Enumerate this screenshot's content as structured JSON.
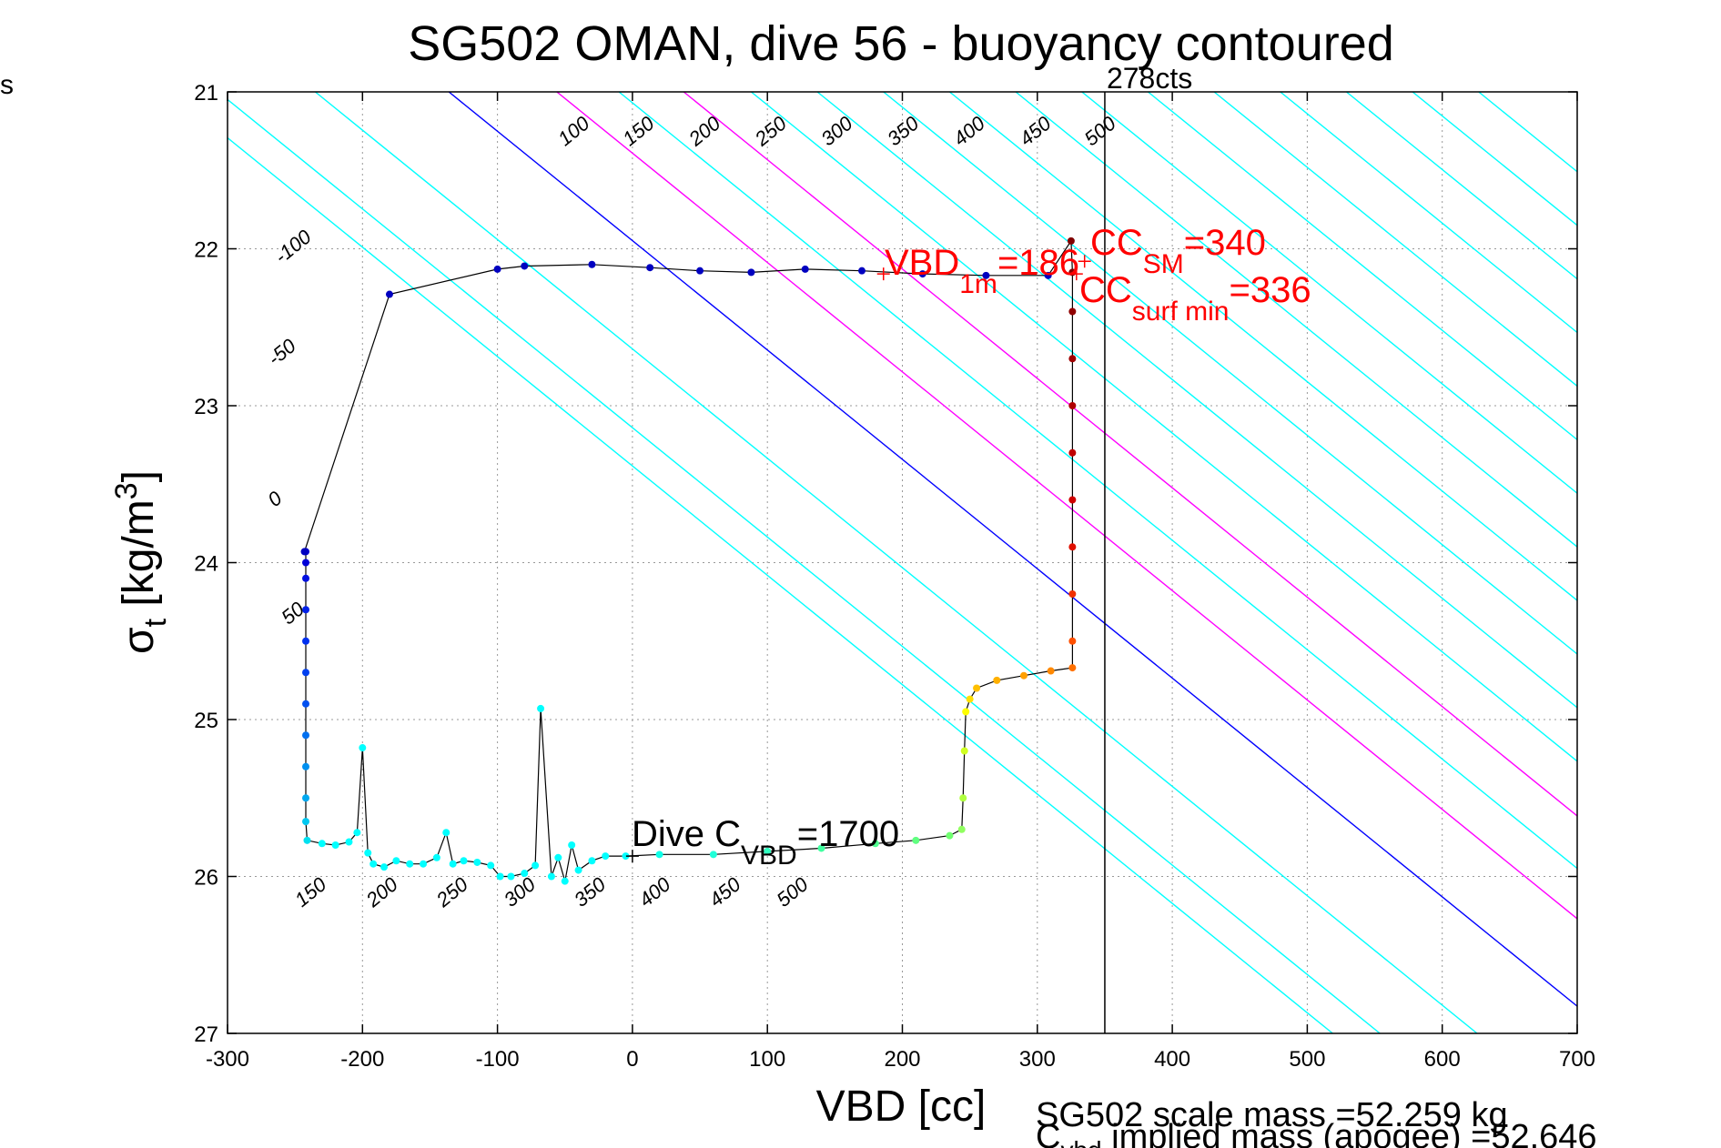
{
  "chart_data": {
    "type": "scatter",
    "title": "SG502 OMAN, dive 56 - buoyancy contoured",
    "xlabel": "VBD [cc]",
    "ylabel": "σt [kg/m3]",
    "xlim": [
      -300,
      700
    ],
    "ylim": [
      21,
      27
    ],
    "y_reversed": true,
    "grid": true,
    "xticks": [
      -300,
      -200,
      -100,
      0,
      100,
      200,
      300,
      400,
      500,
      600,
      700
    ],
    "xtick_labels": [
      "-300",
      "-200",
      "-100",
      "0",
      "100",
      "200",
      "300",
      "400",
      "500",
      "600",
      "700"
    ],
    "yticks": [
      21,
      22,
      23,
      24,
      25,
      26,
      27
    ],
    "ytick_labels": [
      "21",
      "22",
      "23",
      "24",
      "25",
      "26",
      "27"
    ],
    "left_edge_label": "s",
    "contour_slope_sigma_per_cc": 0.00697,
    "contours": [
      {
        "value": -100,
        "label": "-100",
        "color": "#00ffff",
        "x_at_sigma21": -342,
        "label_at": [
          -260,
          22.1
        ]
      },
      {
        "value": -50,
        "label": "-50",
        "color": "#00ffff",
        "x_at_sigma21": -307,
        "label_at": [
          -265,
          22.75
        ]
      },
      {
        "value": 0,
        "label": "0",
        "color": "#0000ff",
        "x_at_sigma21": -136,
        "label_at": [
          -265,
          23.65
        ]
      },
      {
        "value": 50,
        "label": "50",
        "color": "#00ffff",
        "x_at_sigma21": -235,
        "label_at": [
          -255,
          24.4
        ]
      },
      {
        "value": 100,
        "label": "100",
        "color": "#ff00ff",
        "x_at_sigma21": -56,
        "label_at": [
          -50,
          21.35
        ]
      },
      {
        "value": 150,
        "label": "150",
        "color": "#00ffff",
        "x_at_sigma21": -10,
        "label_at": [
          -2,
          21.35
        ]
      },
      {
        "value": 200,
        "label": "200",
        "color": "#ff00ff",
        "x_at_sigma21": 38,
        "label_at": [
          47,
          21.35
        ]
      },
      {
        "value": 250,
        "label": "250",
        "color": "#00ffff",
        "x_at_sigma21": 88,
        "label_at": [
          96,
          21.35
        ]
      },
      {
        "value": 300,
        "label": "300",
        "color": "#00ffff",
        "x_at_sigma21": 137,
        "label_at": [
          145,
          21.35
        ]
      },
      {
        "value": 350,
        "label": "350",
        "color": "#00ffff",
        "x_at_sigma21": 186,
        "label_at": [
          194,
          21.35
        ]
      },
      {
        "value": 400,
        "label": "400",
        "color": "#00ffff",
        "x_at_sigma21": 235,
        "label_at": [
          243,
          21.35
        ]
      },
      {
        "value": 450,
        "label": "450",
        "color": "#00ffff",
        "x_at_sigma21": 284,
        "label_at": [
          292,
          21.35
        ]
      },
      {
        "value": 500,
        "label": "500",
        "color": "#00ffff",
        "x_at_sigma21": 333,
        "label_at": [
          340,
          21.35
        ]
      },
      {
        "value": 550,
        "label": "",
        "color": "#00ffff",
        "x_at_sigma21": 382,
        "label_at": null
      },
      {
        "value": 600,
        "label": "",
        "color": "#00ffff",
        "x_at_sigma21": 431,
        "label_at": null
      },
      {
        "value": 650,
        "label": "",
        "color": "#00ffff",
        "x_at_sigma21": 480,
        "label_at": null
      },
      {
        "value": 700,
        "label": "",
        "color": "#00ffff",
        "x_at_sigma21": 529,
        "label_at": null
      },
      {
        "value": 750,
        "label": "",
        "color": "#00ffff",
        "x_at_sigma21": 578,
        "label_at": null
      },
      {
        "value": 800,
        "label": "",
        "color": "#00ffff",
        "x_at_sigma21": 627,
        "label_at": null
      }
    ],
    "bottom_contour_labels": [
      {
        "label": "150",
        "at": [
          -245,
          26.2
        ]
      },
      {
        "label": "200",
        "at": [
          -192,
          26.2
        ]
      },
      {
        "label": "250",
        "at": [
          -140,
          26.2
        ]
      },
      {
        "label": "300",
        "at": [
          -90,
          26.2
        ]
      },
      {
        "label": "350",
        "at": [
          -38,
          26.2
        ]
      },
      {
        "label": "400",
        "at": [
          10,
          26.2
        ]
      },
      {
        "label": "450",
        "at": [
          62,
          26.2
        ]
      },
      {
        "label": "500",
        "at": [
          112,
          26.2
        ]
      }
    ],
    "series": [
      {
        "name": "dive",
        "line_color": "#000000",
        "points": [
          [
            -242,
            23.93,
            "#0000d0"
          ],
          [
            -242,
            24.0,
            "#0000d8"
          ],
          [
            -242,
            24.1,
            "#0010e0"
          ],
          [
            -242,
            24.3,
            "#0020e8"
          ],
          [
            -242,
            24.5,
            "#0030f0"
          ],
          [
            -242,
            24.7,
            "#0040f0"
          ],
          [
            -242,
            24.9,
            "#0050f0"
          ],
          [
            -242,
            25.1,
            "#0070f0"
          ],
          [
            -242,
            25.3,
            "#0090f0"
          ],
          [
            -242,
            25.5,
            "#00a8f0"
          ],
          [
            -242,
            25.65,
            "#00c8f0"
          ],
          [
            -241,
            25.77,
            "#00e0f0"
          ],
          [
            -230,
            25.79,
            "#00ffff"
          ],
          [
            -220,
            25.8,
            "#00ffff"
          ],
          [
            -210,
            25.78,
            "#00ffff"
          ],
          [
            -204,
            25.72,
            "#00ffff"
          ],
          [
            -200,
            25.18,
            "#00ffff"
          ],
          [
            -196,
            25.85,
            "#00ffff"
          ],
          [
            -192,
            25.92,
            "#00ffff"
          ],
          [
            -184,
            25.94,
            "#00ffff"
          ],
          [
            -175,
            25.9,
            "#00ffff"
          ],
          [
            -165,
            25.92,
            "#00ffff"
          ],
          [
            -155,
            25.92,
            "#00ffff"
          ],
          [
            -145,
            25.88,
            "#00ffff"
          ],
          [
            -138,
            25.72,
            "#00ffff"
          ],
          [
            -133,
            25.92,
            "#00ffff"
          ],
          [
            -125,
            25.9,
            "#00ffff"
          ],
          [
            -115,
            25.91,
            "#00ffff"
          ],
          [
            -105,
            25.93,
            "#00ffff"
          ],
          [
            -98,
            26.0,
            "#00ffff"
          ],
          [
            -90,
            26.0,
            "#00ffff"
          ],
          [
            -80,
            25.98,
            "#00ffff"
          ],
          [
            -72,
            25.93,
            "#00ffff"
          ],
          [
            -68,
            24.93,
            "#00ffff"
          ],
          [
            -60,
            26.0,
            "#00ffff"
          ],
          [
            -55,
            25.88,
            "#00ffff"
          ],
          [
            -50,
            26.03,
            "#00ffff"
          ],
          [
            -45,
            25.8,
            "#00ffff"
          ],
          [
            -40,
            25.96,
            "#00ffff"
          ],
          [
            -30,
            25.9,
            "#00ffff"
          ],
          [
            -20,
            25.87,
            "#00ffff"
          ],
          [
            -5,
            25.87,
            "#00ffff"
          ],
          [
            20,
            25.86,
            "#10ffe8"
          ],
          [
            60,
            25.86,
            "#20ffd8"
          ],
          [
            100,
            25.84,
            "#30ffc0"
          ],
          [
            140,
            25.82,
            "#40ffa0"
          ],
          [
            180,
            25.79,
            "#50ff90"
          ],
          [
            210,
            25.77,
            "#60ff80"
          ],
          [
            235,
            25.74,
            "#70ff70"
          ],
          [
            244,
            25.7,
            "#90ff60"
          ],
          [
            245,
            25.5,
            "#b0ff40"
          ],
          [
            246,
            25.2,
            "#d0ff20"
          ],
          [
            247,
            24.95,
            "#ffff00"
          ],
          [
            250,
            24.87,
            "#ffe000"
          ],
          [
            255,
            24.8,
            "#ffc000"
          ],
          [
            270,
            24.75,
            "#ffb000"
          ],
          [
            290,
            24.72,
            "#ffa000"
          ],
          [
            310,
            24.69,
            "#ff8800"
          ],
          [
            326,
            24.67,
            "#ff7000"
          ],
          [
            326,
            24.5,
            "#ff5000"
          ],
          [
            326,
            24.2,
            "#f03000"
          ],
          [
            326,
            23.9,
            "#e01000"
          ],
          [
            326,
            23.6,
            "#d00000"
          ],
          [
            326,
            23.3,
            "#c00000"
          ],
          [
            326,
            23.0,
            "#b00000"
          ],
          [
            326,
            22.7,
            "#a00000"
          ],
          [
            326,
            22.4,
            "#900000"
          ],
          [
            326,
            22.15,
            "#800000"
          ],
          [
            325,
            21.95,
            "#800000"
          ],
          [
            308,
            22.17,
            "#0000c0"
          ],
          [
            262,
            22.17,
            "#0000c0"
          ],
          [
            215,
            22.16,
            "#0000c0"
          ],
          [
            170,
            22.14,
            "#0000c0"
          ],
          [
            128,
            22.13,
            "#0000c0"
          ],
          [
            88,
            22.15,
            "#0000c0"
          ],
          [
            50,
            22.14,
            "#0000c0"
          ],
          [
            13,
            22.12,
            "#0000c0"
          ],
          [
            -30,
            22.1,
            "#0000c0"
          ],
          [
            -80,
            22.11,
            "#0000c0"
          ],
          [
            -100,
            22.13,
            "#0000c0"
          ],
          [
            -180,
            22.29,
            "#0000c0"
          ],
          [
            -243,
            23.93,
            "#0000c0"
          ]
        ]
      }
    ],
    "vertical_line": {
      "x": 350,
      "label": "278cts"
    },
    "markers": [
      {
        "label": "VBD_1m=186",
        "x": 186,
        "y": 22.16,
        "color": "#ff0000"
      },
      {
        "label": "CC_SM=340",
        "x": 335,
        "y": 22.08,
        "color": "#ff0000"
      },
      {
        "label": "CC_surf min=336",
        "x": 329,
        "y": 22.16,
        "color": "#ff0000"
      },
      {
        "label": "Dive C_VBD=1700",
        "x": 0,
        "y": 25.87,
        "color": "#000000"
      }
    ],
    "annotations": {
      "vbd_1m": {
        "base": "VBD",
        "sub": "1m",
        "rest": "=186"
      },
      "cc_sm": {
        "base": "CC",
        "sub": "SM",
        "rest": "=340"
      },
      "cc_surf": {
        "base": "CC",
        "sub": "surf min",
        "rest": "=336"
      },
      "dive_cvbd": {
        "base": "Dive C",
        "sub": "VBD",
        "rest": "=1700"
      }
    },
    "footer": {
      "scale_mass": "SG502 scale mass =52.259 kg",
      "implied_base": "C",
      "implied_sub": "vbd",
      "implied_rest": " implied mass (apogee) =52.646"
    }
  }
}
